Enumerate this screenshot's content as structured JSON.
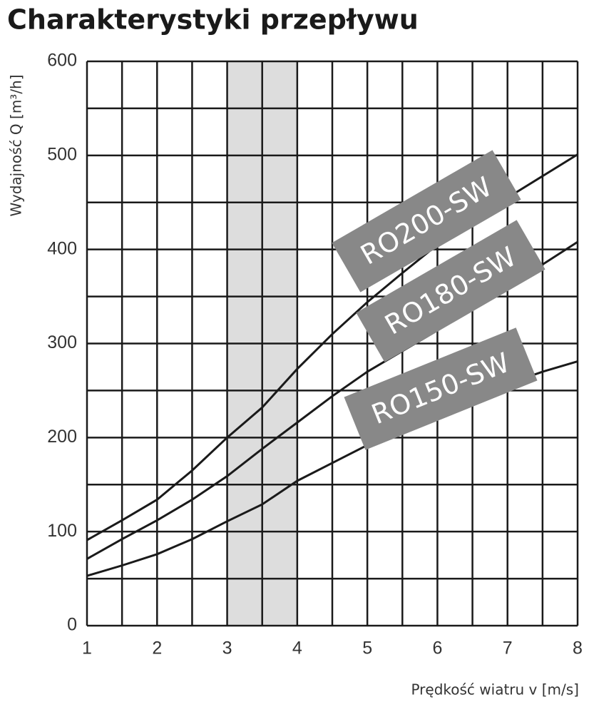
{
  "chart_data": {
    "type": "line",
    "title": "Charakterystyki przepływu",
    "x_label": "Prędkość wiatru v [m/s]",
    "y_label": "Wydajność Q [m³/h]",
    "x": [
      1,
      1.5,
      2,
      2.5,
      3,
      3.5,
      4,
      4.5,
      5,
      5.5,
      6,
      6.5,
      7,
      7.5,
      8
    ],
    "series": [
      {
        "name": "RO200-SW",
        "color": "#1a1a1a",
        "values": [
          91,
          112,
          134,
          165,
          200,
          232,
          273,
          310,
          344,
          375,
          405,
          432,
          455,
          478,
          501
        ]
      },
      {
        "name": "RO180-SW",
        "color": "#1a1a1a",
        "values": [
          71,
          92,
          112,
          134,
          159,
          188,
          216,
          244,
          270,
          292,
          314,
          337,
          360,
          384,
          408
        ]
      },
      {
        "name": "RO150-SW",
        "color": "#1a1a1a",
        "values": [
          53,
          64,
          76,
          92,
          111,
          129,
          154,
          173,
          192,
          210,
          227,
          243,
          257,
          270,
          281
        ]
      }
    ],
    "label_color": "#888888",
    "highlight_x": [
      3,
      4
    ],
    "highlight_color": "#dddddd",
    "xlim": [
      1,
      8
    ],
    "ylim": [
      0,
      600
    ],
    "xticks": [
      1,
      2,
      3,
      4,
      5,
      6,
      7,
      8
    ],
    "yticks": [
      0,
      100,
      200,
      300,
      400,
      500,
      600
    ],
    "xminor": [
      1.5,
      2.5,
      3.5,
      4.5,
      5.5,
      6.5,
      7.5
    ],
    "yminor": [
      50,
      150,
      250,
      350,
      450,
      550
    ],
    "grid": true
  }
}
